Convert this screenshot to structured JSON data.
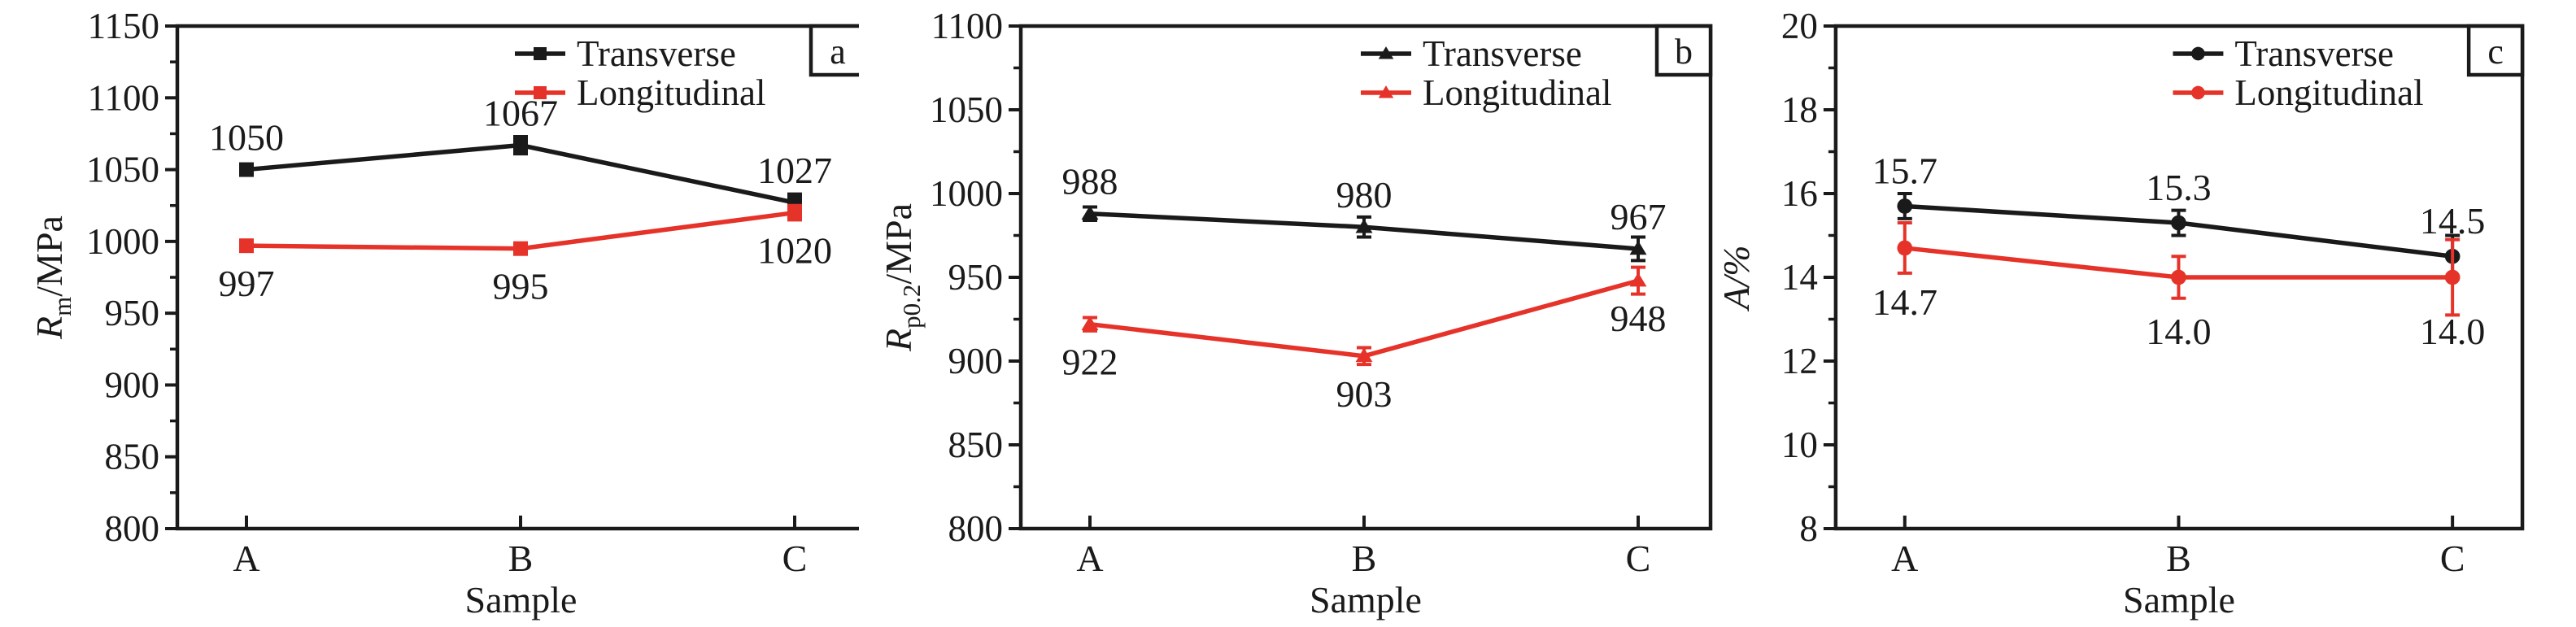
{
  "figure": {
    "background": "#ffffff",
    "description": "Three-panel line chart of tensile properties (Rm, Rp0.2, A) for samples A, B, C in transverse and longitudinal directions"
  },
  "colors": {
    "black": "#1a1a1a",
    "red": "#e6332a"
  },
  "chart_data": [
    {
      "id": "a",
      "type": "line",
      "panel_label": "a",
      "title": "",
      "xlabel": "Sample",
      "ylabel_plain": "Rm/MPa",
      "ylabel": {
        "italic": "R",
        "sub": "m",
        "rest": "/MPa",
        "rest_italic": false
      },
      "categories": [
        "A",
        "B",
        "C"
      ],
      "ylim": [
        800,
        1150
      ],
      "yticks": [
        800,
        850,
        900,
        950,
        1000,
        1050,
        1100,
        1150
      ],
      "minor_between": true,
      "grid": false,
      "legend": {
        "position": "top-right-inside",
        "entries": [
          {
            "label": "Transverse",
            "color": "#1a1a1a",
            "marker": "square"
          },
          {
            "label": "Longitudinal",
            "color": "#e6332a",
            "marker": "square"
          }
        ]
      },
      "series": [
        {
          "name": "Transverse",
          "color": "#1a1a1a",
          "marker": "square",
          "values": [
            1050,
            1067,
            1027
          ],
          "errors": [
            2,
            6,
            6
          ],
          "labels": [
            "1050",
            "1067",
            "1027"
          ],
          "label_pos": [
            "above",
            "above",
            "above"
          ]
        },
        {
          "name": "Longitudinal",
          "color": "#e6332a",
          "marker": "square",
          "values": [
            997,
            995,
            1020
          ],
          "errors": [
            3,
            3,
            5
          ],
          "labels": [
            "997",
            "995",
            "1020"
          ],
          "label_pos": [
            "below",
            "below",
            "below"
          ]
        }
      ]
    },
    {
      "id": "b",
      "type": "line",
      "panel_label": "b",
      "title": "",
      "xlabel": "Sample",
      "ylabel_plain": "Rp0.2/MPa",
      "ylabel": {
        "italic": "R",
        "sub": "p0.2",
        "rest": "/MPa",
        "rest_italic": false
      },
      "categories": [
        "A",
        "B",
        "C"
      ],
      "ylim": [
        800,
        1100
      ],
      "yticks": [
        800,
        850,
        900,
        950,
        1000,
        1050,
        1100
      ],
      "minor_between": true,
      "grid": false,
      "legend": {
        "position": "top-right-inside",
        "entries": [
          {
            "label": "Transverse",
            "color": "#1a1a1a",
            "marker": "triangle"
          },
          {
            "label": "Longitudinal",
            "color": "#e6332a",
            "marker": "triangle"
          }
        ]
      },
      "series": [
        {
          "name": "Transverse",
          "color": "#1a1a1a",
          "marker": "triangle",
          "values": [
            988,
            980,
            967
          ],
          "errors": [
            4,
            6,
            7
          ],
          "labels": [
            "988",
            "980",
            "967"
          ],
          "label_pos": [
            "above",
            "above",
            "above"
          ]
        },
        {
          "name": "Longitudinal",
          "color": "#e6332a",
          "marker": "triangle",
          "values": [
            922,
            903,
            948
          ],
          "errors": [
            4,
            5,
            8
          ],
          "labels": [
            "922",
            "903",
            "948"
          ],
          "label_pos": [
            "below",
            "below",
            "below"
          ]
        }
      ]
    },
    {
      "id": "c",
      "type": "line",
      "panel_label": "c",
      "title": "",
      "xlabel": "Sample",
      "ylabel_plain": "A/%",
      "ylabel": {
        "italic": "A",
        "sub": "",
        "rest": "/%",
        "rest_italic": true
      },
      "categories": [
        "A",
        "B",
        "C"
      ],
      "ylim": [
        8,
        20
      ],
      "yticks": [
        8,
        10,
        12,
        14,
        16,
        18,
        20
      ],
      "minor_between": true,
      "grid": false,
      "legend": {
        "position": "top-right-inside",
        "entries": [
          {
            "label": "Transverse",
            "color": "#1a1a1a",
            "marker": "circle"
          },
          {
            "label": "Longitudinal",
            "color": "#e6332a",
            "marker": "circle"
          }
        ]
      },
      "series": [
        {
          "name": "Transverse",
          "color": "#1a1a1a",
          "marker": "circle",
          "values": [
            15.7,
            15.3,
            14.5
          ],
          "errors": [
            0.3,
            0.3,
            0.5
          ],
          "labels": [
            "15.7",
            "15.3",
            "14.5"
          ],
          "label_pos": [
            "above",
            "above",
            "above"
          ]
        },
        {
          "name": "Longitudinal",
          "color": "#e6332a",
          "marker": "circle",
          "values": [
            14.7,
            14.0,
            14.0
          ],
          "errors": [
            0.6,
            0.5,
            0.9
          ],
          "labels": [
            "14.7",
            "14.0",
            "14.0"
          ],
          "label_pos": [
            "below",
            "below",
            "below"
          ]
        }
      ]
    }
  ]
}
